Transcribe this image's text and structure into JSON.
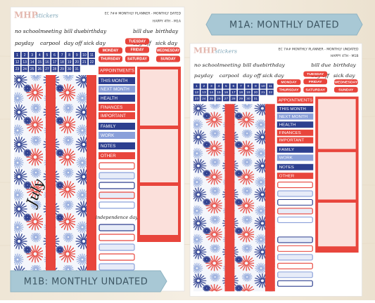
{
  "tags": {
    "dated": "M1A: MONTHLY DATED",
    "undated": "M1B: MONTHLY UNDATED"
  },
  "sheets": [
    {
      "brand": "MHP",
      "brand_sub": "stickers",
      "title": "EC 7## MONTHLY PLANNER - MONTHLY DATED",
      "subtitle": "HAPPY 4TH - M1A",
      "words": [
        "no school",
        "meeting",
        "bill due",
        "birthday",
        "payday",
        "carpool",
        "day off",
        "sick day"
      ],
      "days": [
        "MONDAY",
        "TUESDAY",
        "WEDNESDAY",
        "THURSDAY",
        "FRIDAY",
        "SATURDAY",
        "SUNDAY"
      ],
      "numbers": [
        1,
        2,
        3,
        4,
        5,
        6,
        7,
        8,
        9,
        10,
        11,
        12,
        13,
        14,
        15,
        16,
        17,
        18,
        19,
        20,
        21,
        22,
        23,
        24,
        25,
        26,
        27,
        28,
        29,
        30,
        31
      ],
      "labels": [
        "APPOINTMENTS",
        "THIS MONTH",
        "NEXT MONTH",
        "HEALTH",
        "FINANCES",
        "IMPORTANT",
        "FAMILY",
        "WORK",
        "NOTES",
        "OTHER"
      ],
      "month": "July",
      "note": "independence day"
    },
    {
      "brand": "MHP",
      "brand_sub": "stickers",
      "title": "EC 7## MONTHLY PLANNER - MONTHLY UNDATED",
      "subtitle": "HAPPY 4TH - M1B",
      "words": [
        "no school",
        "meeting",
        "bill due",
        "birthday",
        "payday",
        "carpool",
        "day off",
        "sick day"
      ],
      "days": [
        "MONDAY",
        "TUESDAY",
        "WEDNESDAY",
        "THURSDAY",
        "FRIDAY",
        "SATURDAY",
        "SUNDAY"
      ],
      "numbers": [
        1,
        2,
        3,
        4,
        5,
        6,
        7,
        8,
        9,
        10,
        11,
        12,
        13,
        14,
        15,
        16,
        17,
        18,
        19,
        20,
        21,
        22,
        23,
        24,
        25,
        26,
        27,
        28,
        29,
        30,
        31
      ],
      "labels": [
        "APPOINTMENTS",
        "THIS MONTH",
        "NEXT MONTH",
        "HEALTH",
        "FINANCES",
        "IMPORTANT",
        "FAMILY",
        "WORK",
        "NOTES",
        "OTHER"
      ]
    }
  ]
}
